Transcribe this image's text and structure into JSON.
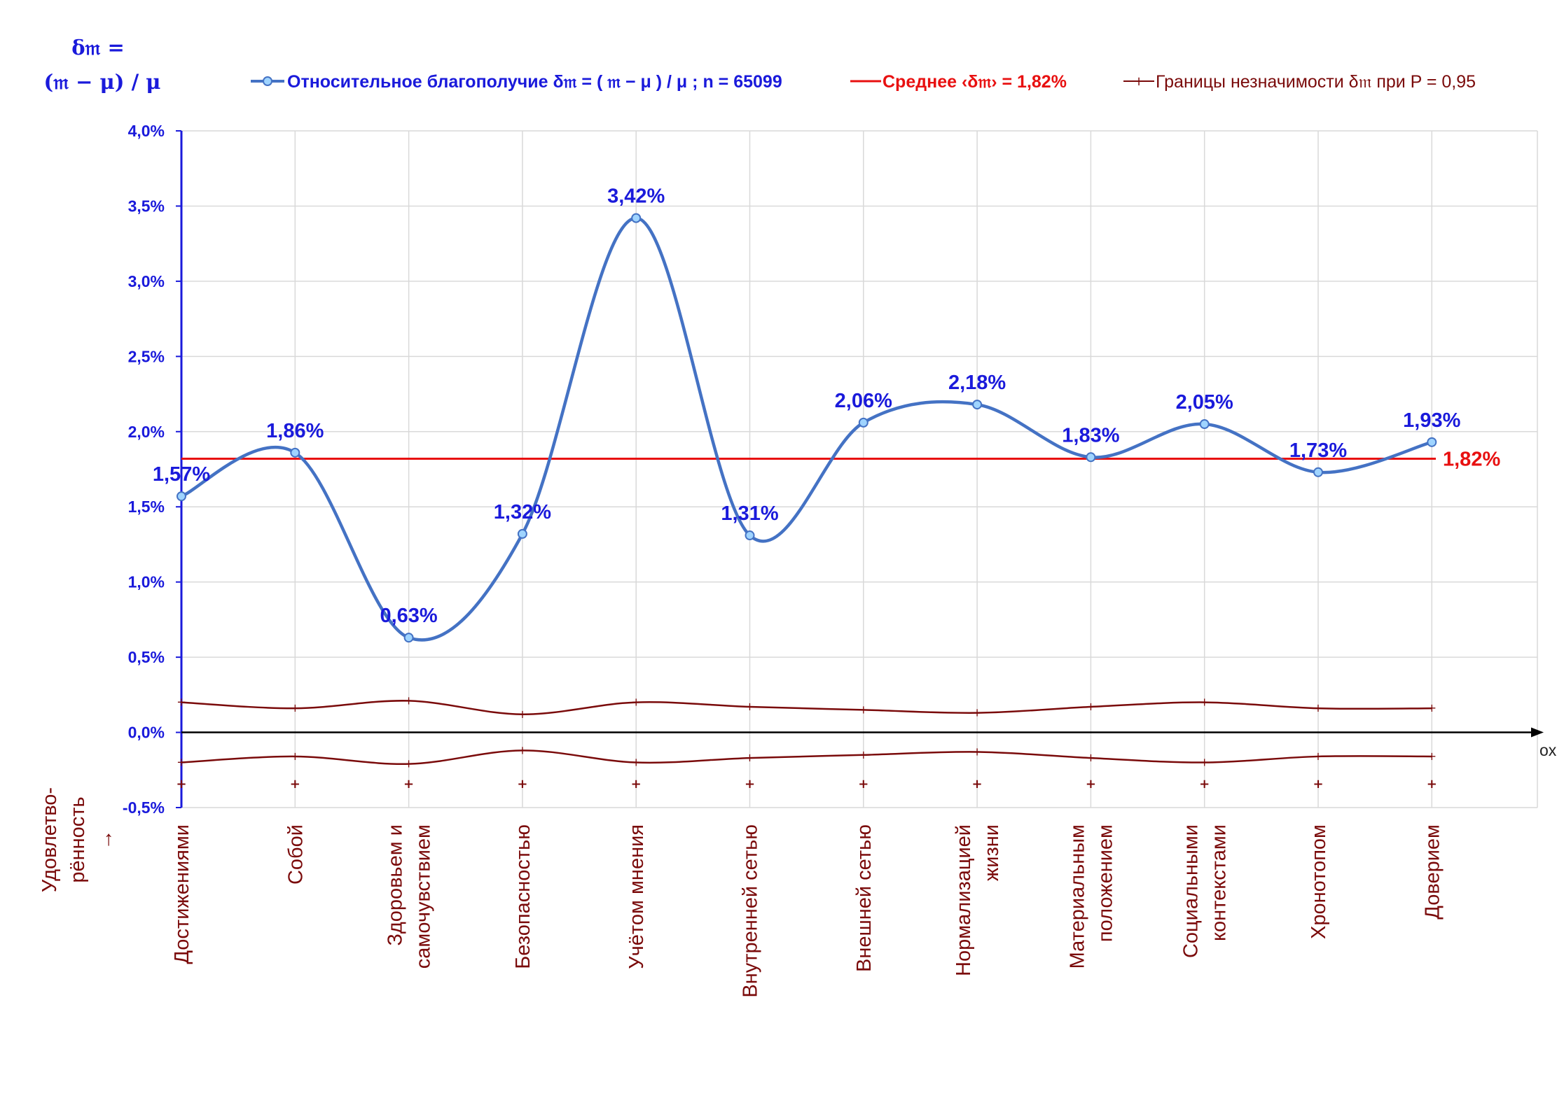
{
  "chart_data": {
    "type": "line",
    "y_title_line1": "δ𝔪 =",
    "y_title_line2": "(𝔪 − μ) / μ",
    "x_axis_caption_line1": "Удовлетво-",
    "x_axis_caption_line2": "рённость",
    "x_axis_caption_arrow": "→",
    "x_axis_name": "ox",
    "ylim": [
      -0.5,
      4.0
    ],
    "y_ticks": [
      -0.5,
      0.0,
      0.5,
      1.0,
      1.5,
      2.0,
      2.5,
      3.0,
      3.5,
      4.0
    ],
    "y_tick_labels": [
      "-0,5%",
      "0,0%",
      "0,5%",
      "1,0%",
      "1,5%",
      "2,0%",
      "2,5%",
      "3,0%",
      "3,5%",
      "4,0%"
    ],
    "grid": true,
    "legend_position": "top",
    "categories": [
      [
        "Достижениями"
      ],
      [
        "Собой"
      ],
      [
        "Здоровьем и",
        "самочувствием"
      ],
      [
        "Безопасностью"
      ],
      [
        "Учётом мнения"
      ],
      [
        "Внутренней сетью"
      ],
      [
        "Внешней сетью"
      ],
      [
        "Нормализацией",
        "жизни"
      ],
      [
        "Материальным",
        "положением"
      ],
      [
        "Социальными",
        "контекстами"
      ],
      [
        "Хронотопом"
      ],
      [
        "Доверием"
      ]
    ],
    "series": [
      {
        "name": "Относительное благополучие δ𝔪 = ( 𝔪 − μ ) / μ ; n = 65099",
        "color": "#4472c4",
        "values": [
          1.57,
          1.86,
          0.63,
          1.32,
          3.42,
          1.31,
          2.06,
          2.18,
          1.83,
          2.05,
          1.73,
          1.93
        ],
        "labels": [
          "1,57%",
          "1,86%",
          "0,63%",
          "1,32%",
          "3,42%",
          "1,31%",
          "2,06%",
          "2,18%",
          "1,83%",
          "2,05%",
          "1,73%",
          "1,93%"
        ]
      },
      {
        "name": "Среднее ‹δ𝔪› = 1,82%",
        "color": "#e81010",
        "value": 1.82,
        "label": "1,82%"
      },
      {
        "name": "Границы незначимости δ𝔪 при P = 0,95",
        "color": "#7a0a0a",
        "upper": [
          0.2,
          0.16,
          0.21,
          0.12,
          0.2,
          0.17,
          0.15,
          0.13,
          0.17,
          0.2,
          0.16,
          0.16
        ],
        "lower": [
          -0.2,
          -0.16,
          -0.21,
          -0.12,
          -0.2,
          -0.17,
          -0.15,
          -0.13,
          -0.17,
          -0.2,
          -0.16,
          -0.16
        ]
      }
    ]
  }
}
